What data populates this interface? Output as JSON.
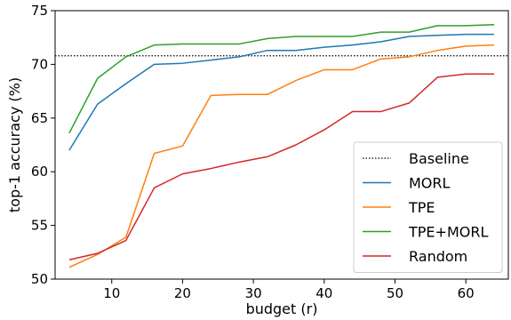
{
  "chart_data": {
    "type": "line",
    "title": "",
    "xlabel": "budget (r)",
    "ylabel": "top-1 accuracy (%)",
    "xlim": [
      2,
      66
    ],
    "ylim": [
      50,
      75
    ],
    "xticks": [
      10,
      20,
      30,
      40,
      50,
      60
    ],
    "yticks": [
      50,
      55,
      60,
      65,
      70,
      75
    ],
    "grid": false,
    "legend_position": "lower-right",
    "baseline": {
      "name": "Baseline",
      "value": 70.8,
      "color": "#000000",
      "style": "dotted"
    },
    "series": [
      {
        "name": "MORL",
        "color": "#1f77b4",
        "x": [
          4,
          8,
          12,
          16,
          20,
          24,
          28,
          32,
          36,
          40,
          44,
          48,
          52,
          56,
          60,
          64
        ],
        "values": [
          62.0,
          66.3,
          68.2,
          70.0,
          70.1,
          70.4,
          70.7,
          71.3,
          71.3,
          71.6,
          71.8,
          72.1,
          72.6,
          72.7,
          72.8,
          72.8
        ]
      },
      {
        "name": "TPE",
        "color": "#ff7f0e",
        "x": [
          4,
          8,
          12,
          16,
          20,
          24,
          28,
          32,
          36,
          40,
          44,
          48,
          52,
          56,
          60,
          64
        ],
        "values": [
          51.1,
          52.3,
          53.9,
          61.7,
          62.4,
          67.1,
          67.2,
          67.2,
          68.5,
          69.5,
          69.5,
          70.5,
          70.7,
          71.3,
          71.7,
          71.8
        ]
      },
      {
        "name": "TPE+MORL",
        "color": "#2ca02c",
        "x": [
          4,
          8,
          12,
          16,
          20,
          24,
          28,
          32,
          36,
          40,
          44,
          48,
          52,
          56,
          60,
          64
        ],
        "values": [
          63.6,
          68.7,
          70.7,
          71.8,
          71.9,
          71.9,
          71.9,
          72.4,
          72.6,
          72.6,
          72.6,
          73.0,
          73.0,
          73.6,
          73.6,
          73.7
        ]
      },
      {
        "name": "Random",
        "color": "#d62728",
        "x": [
          4,
          8,
          12,
          16,
          20,
          24,
          28,
          32,
          36,
          40,
          44,
          48,
          52,
          56,
          60,
          64
        ],
        "values": [
          51.8,
          52.4,
          53.6,
          58.5,
          59.8,
          60.3,
          60.9,
          61.4,
          62.5,
          63.9,
          65.6,
          65.6,
          66.4,
          68.8,
          69.1,
          69.1
        ]
      }
    ]
  }
}
